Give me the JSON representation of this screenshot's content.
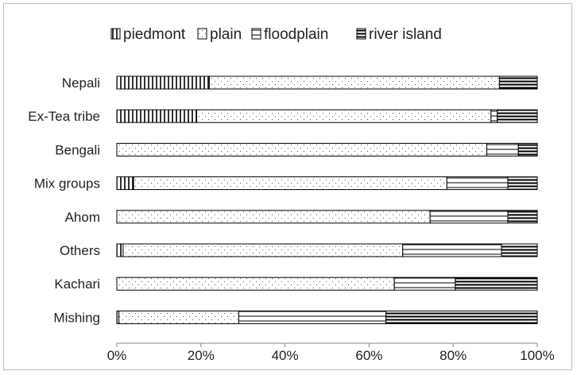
{
  "chart_data": {
    "type": "bar",
    "orientation": "horizontal",
    "stacked": "percent",
    "categories": [
      "Nepali",
      "Ex-Tea tribe",
      "Bengali",
      "Mix groups",
      "Ahom",
      "Others",
      "Kachari",
      "Mishing"
    ],
    "series": [
      {
        "name": "piedmont",
        "pattern": "vertical-lines",
        "values": [
          22,
          19,
          0,
          4,
          0,
          1.5,
          0,
          0.5
        ]
      },
      {
        "name": "plain",
        "pattern": "dots",
        "values": [
          69,
          70,
          88,
          74.5,
          74.5,
          66.5,
          66,
          28.5
        ]
      },
      {
        "name": "floodplain",
        "pattern": "horizontal-lines",
        "values": [
          0,
          1.5,
          7.5,
          14.5,
          18.5,
          23.5,
          14.5,
          35
        ]
      },
      {
        "name": "river island",
        "pattern": "dense-horizontal-lines",
        "values": [
          9,
          9.5,
          4.5,
          7,
          7,
          8.5,
          19.5,
          36
        ]
      }
    ],
    "xticks": [
      "0%",
      "20%",
      "40%",
      "60%",
      "80%",
      "100%"
    ],
    "xlim": [
      0,
      100
    ],
    "legend_position": "top",
    "grid": false,
    "colors": {
      "stroke": "#000000",
      "background": "#ffffff",
      "frame": "#bfbfbf"
    }
  }
}
